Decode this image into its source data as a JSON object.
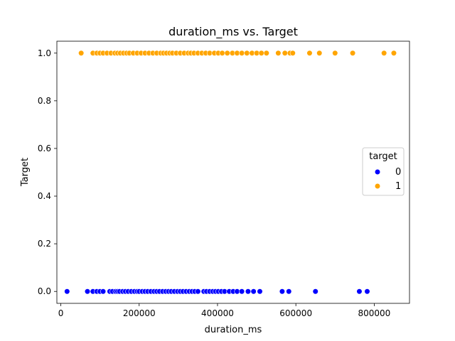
{
  "chart_data": {
    "type": "scatter",
    "title": "duration_ms vs. Target",
    "xlabel": "duration_ms",
    "ylabel": "Target",
    "xlim": [
      -10000,
      890000
    ],
    "ylim": [
      -0.05,
      1.05
    ],
    "xticks": [
      0,
      200000,
      400000,
      600000,
      800000
    ],
    "xtick_labels": [
      "0",
      "200000",
      "400000",
      "600000",
      "800000"
    ],
    "yticks": [
      0.0,
      0.2,
      0.4,
      0.6,
      0.8,
      1.0
    ],
    "ytick_labels": [
      "0.0",
      "0.2",
      "0.4",
      "0.6",
      "0.8",
      "1.0"
    ],
    "grid": false,
    "legend": {
      "title": "target",
      "placement": "center-right",
      "entries": [
        {
          "label": "0",
          "color": "#0000ff"
        },
        {
          "label": "1",
          "color": "#ffa500"
        }
      ]
    },
    "series": [
      {
        "name": "0",
        "color": "#0000ff",
        "y": 0,
        "x": [
          16000,
          68000,
          82000,
          92000,
          100000,
          108000,
          125000,
          132000,
          140000,
          145000,
          150000,
          158000,
          165000,
          172000,
          180000,
          188000,
          195000,
          200000,
          208000,
          215000,
          222000,
          230000,
          238000,
          245000,
          252000,
          260000,
          268000,
          275000,
          282000,
          290000,
          298000,
          305000,
          312000,
          320000,
          328000,
          335000,
          342000,
          350000,
          365000,
          372000,
          380000,
          388000,
          395000,
          402000,
          410000,
          418000,
          430000,
          440000,
          450000,
          462000,
          478000,
          492000,
          508000,
          565000,
          582000,
          650000,
          762000,
          782000
        ]
      },
      {
        "name": "1",
        "color": "#ffa500",
        "y": 1,
        "x": [
          52000,
          82000,
          92000,
          100000,
          108000,
          118000,
          128000,
          138000,
          145000,
          152000,
          160000,
          168000,
          175000,
          185000,
          195000,
          205000,
          215000,
          225000,
          235000,
          245000,
          255000,
          262000,
          270000,
          278000,
          285000,
          295000,
          305000,
          315000,
          325000,
          332000,
          340000,
          350000,
          360000,
          370000,
          380000,
          392000,
          402000,
          412000,
          425000,
          438000,
          450000,
          462000,
          475000,
          488000,
          500000,
          512000,
          525000,
          555000,
          572000,
          585000,
          592000,
          635000,
          660000,
          700000,
          745000,
          825000,
          850000
        ]
      }
    ]
  }
}
